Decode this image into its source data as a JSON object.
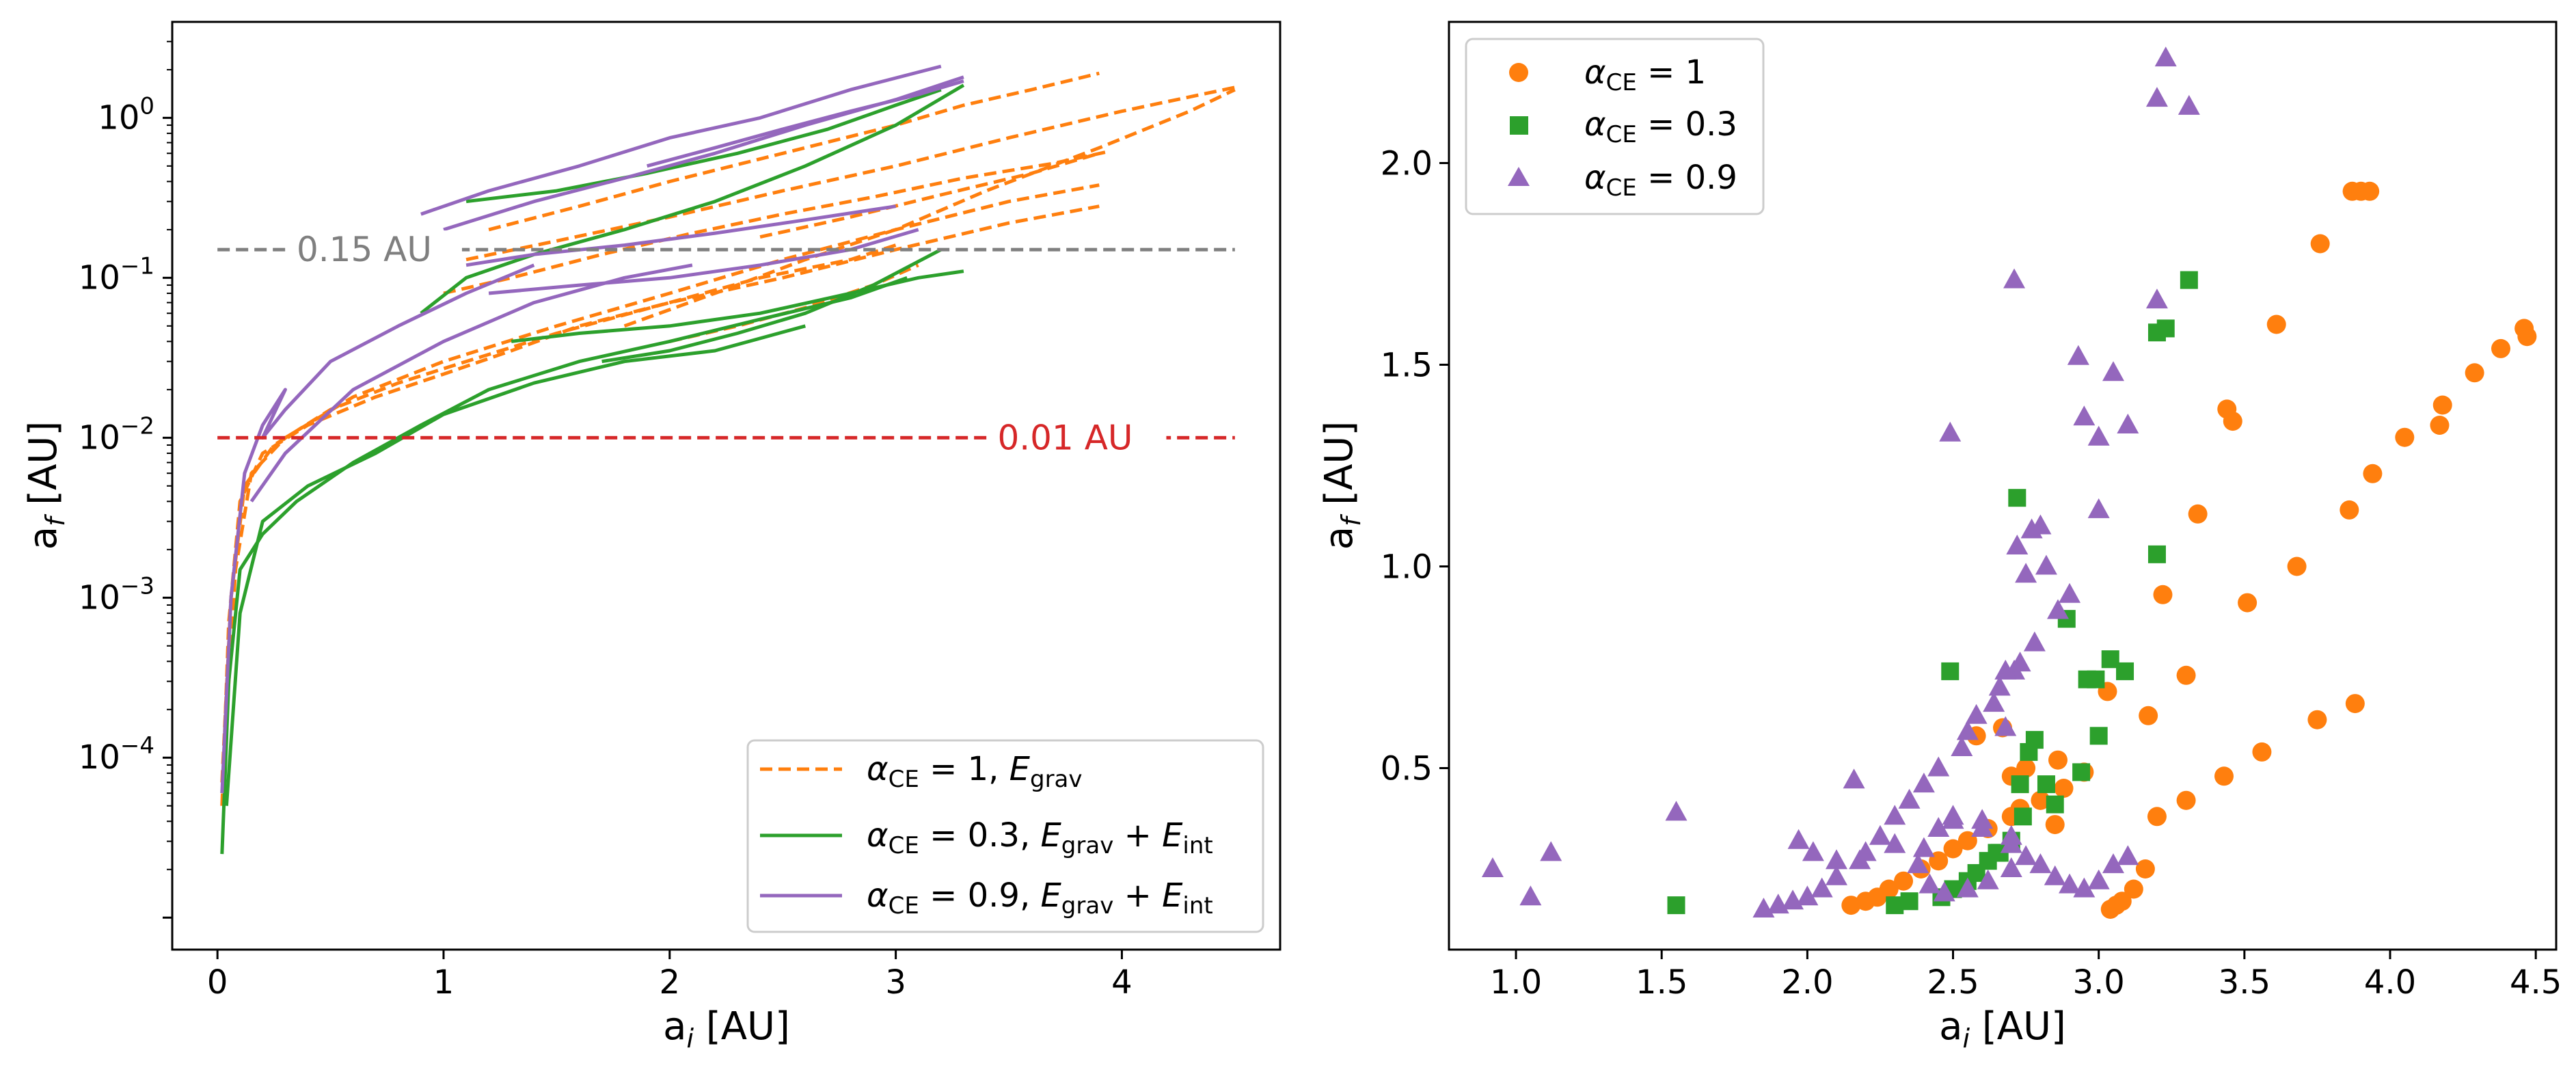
{
  "chart_data": [
    {
      "type": "line",
      "panel": "left",
      "xlabel_main": "a",
      "xlabel_sub": "i",
      "xlabel_unit": " [AU]",
      "ylabel_main": "a",
      "ylabel_sub": "f",
      "ylabel_unit": " [AU]",
      "xlim": [
        -0.2,
        4.7
      ],
      "ylim_log10": [
        -5.2,
        0.6
      ],
      "yscale": "log",
      "xticks": [
        0,
        1,
        2,
        3,
        4
      ],
      "yticks_log10": [
        -4,
        -3,
        -2,
        -1,
        0
      ],
      "ytick_labels": [
        {
          "base": "10",
          "exp": "−4"
        },
        {
          "base": "10",
          "exp": "−3"
        },
        {
          "base": "10",
          "exp": "−2"
        },
        {
          "base": "10",
          "exp": "−1"
        },
        {
          "base": "10",
          "exp": "0"
        }
      ],
      "reference_lines": [
        {
          "value": 0.15,
          "label": "0.15 AU",
          "color": "#7f7f7f"
        },
        {
          "value": 0.01,
          "label": "0.01 AU",
          "color": "#d62728"
        }
      ],
      "legend": [
        {
          "alpha": "1",
          "energy_main": "E",
          "energy_sub": "grav",
          "extra_main": "",
          "extra_sub": "",
          "color": "#ff7f0e",
          "style": "dashed"
        },
        {
          "alpha": "0.3",
          "energy_main": "E",
          "energy_sub": "grav",
          "extra_main": "E",
          "extra_sub": "int",
          "color": "#2ca02c",
          "style": "solid"
        },
        {
          "alpha": "0.9",
          "energy_main": "E",
          "energy_sub": "grav",
          "extra_main": "E",
          "extra_sub": "int",
          "color": "#9467bd",
          "style": "solid"
        }
      ],
      "legend_alpha_symbol": "α",
      "legend_alpha_sub": "CE",
      "legend_placement": "bottom-right",
      "series": [
        {
          "name": "α_CE = 1, E_grav",
          "color": "#ff7f0e",
          "style": "dashed",
          "tracks": [
            {
              "x": [
                0.02,
                0.05,
                0.1,
                0.2,
                0.4,
                0.7,
                1.0,
                1.3,
                1.6,
                2.0,
                2.4,
                2.8,
                3.0
              ],
              "y": [
                5e-05,
                0.0007,
                0.004,
                0.008,
                0.012,
                0.018,
                0.025,
                0.035,
                0.05,
                0.07,
                0.1,
                0.13,
                0.16
              ]
            },
            {
              "x": [
                0.02,
                0.06,
                0.12,
                0.25,
                0.5,
                0.8,
                1.1,
                1.5,
                2.0,
                2.5,
                3.0,
                3.5,
                3.9
              ],
              "y": [
                7e-05,
                0.001,
                0.005,
                0.009,
                0.015,
                0.022,
                0.03,
                0.045,
                0.07,
                0.1,
                0.15,
                0.22,
                0.28
              ]
            },
            {
              "x": [
                0.03,
                0.08,
                0.15,
                0.3,
                0.6,
                1.0,
                1.5,
                2.0,
                2.5,
                3.0,
                3.5,
                3.9
              ],
              "y": [
                0.0001,
                0.0015,
                0.006,
                0.01,
                0.018,
                0.03,
                0.05,
                0.08,
                0.13,
                0.2,
                0.3,
                0.38
              ]
            },
            {
              "x": [
                1.0,
                1.3,
                1.7,
                2.1,
                2.5,
                2.9,
                3.3,
                3.7,
                3.95
              ],
              "y": [
                0.08,
                0.1,
                0.14,
                0.19,
                0.25,
                0.32,
                0.42,
                0.52,
                0.62
              ]
            },
            {
              "x": [
                1.1,
                1.5,
                2.0,
                2.5,
                3.0,
                3.5,
                4.0,
                4.5
              ],
              "y": [
                0.13,
                0.17,
                0.24,
                0.35,
                0.5,
                0.75,
                1.1,
                1.55
              ]
            },
            {
              "x": [
                1.2,
                1.6,
                2.0,
                2.5,
                3.0,
                3.3,
                3.6,
                3.9
              ],
              "y": [
                0.2,
                0.28,
                0.4,
                0.6,
                0.9,
                1.2,
                1.5,
                1.9
              ]
            },
            {
              "x": [
                1.8,
                2.2,
                2.6,
                3.0,
                3.4,
                3.9,
                4.3,
                4.5
              ],
              "y": [
                0.05,
                0.08,
                0.13,
                0.2,
                0.35,
                0.65,
                1.1,
                1.5
              ]
            },
            {
              "x": [
                2.0,
                2.3,
                2.6,
                2.9,
                3.1
              ],
              "y": [
                0.04,
                0.05,
                0.065,
                0.09,
                0.12
              ]
            },
            {
              "x": [
                2.4,
                2.8,
                3.2,
                3.6,
                3.9
              ],
              "y": [
                0.18,
                0.24,
                0.33,
                0.45,
                0.6
              ]
            }
          ]
        },
        {
          "name": "α_CE = 0.3, E_grav + E_int",
          "color": "#2ca02c",
          "style": "solid",
          "tracks": [
            {
              "x": [
                0.02,
                0.05,
                0.1,
                0.2,
                0.35,
                0.6,
                0.9,
                1.2,
                1.6,
                2.0,
                2.4,
                2.8,
                3.05
              ],
              "y": [
                2.5e-05,
                0.0003,
                0.0015,
                0.0025,
                0.004,
                0.007,
                0.012,
                0.02,
                0.03,
                0.04,
                0.055,
                0.075,
                0.1
              ]
            },
            {
              "x": [
                0.9,
                1.1,
                1.4,
                1.8,
                2.2,
                2.6,
                3.0,
                3.3
              ],
              "y": [
                0.06,
                0.1,
                0.14,
                0.2,
                0.3,
                0.5,
                0.9,
                1.6
              ]
            },
            {
              "x": [
                1.3,
                1.6,
                2.0,
                2.4,
                2.8,
                3.1,
                3.3
              ],
              "y": [
                0.04,
                0.045,
                0.05,
                0.06,
                0.08,
                0.1,
                0.11
              ]
            },
            {
              "x": [
                1.1,
                1.5,
                1.9,
                2.3,
                2.7,
                3.0,
                3.2
              ],
              "y": [
                0.3,
                0.35,
                0.45,
                0.6,
                0.85,
                1.2,
                1.5
              ]
            },
            {
              "x": [
                1.7,
                2.0,
                2.3,
                2.6,
                2.9,
                3.2
              ],
              "y": [
                0.03,
                0.035,
                0.045,
                0.06,
                0.09,
                0.15
              ]
            },
            {
              "x": [
                0.04,
                0.1,
                0.2,
                0.4,
                0.7,
                1.0,
                1.4,
                1.8,
                2.2,
                2.6
              ],
              "y": [
                5e-05,
                0.0008,
                0.003,
                0.005,
                0.008,
                0.014,
                0.022,
                0.03,
                0.035,
                0.05
              ]
            }
          ]
        },
        {
          "name": "α_CE = 0.9, E_grav + E_int",
          "color": "#9467bd",
          "style": "solid",
          "tracks": [
            {
              "x": [
                0.02,
                0.06,
                0.12,
                0.2,
                0.3,
                0.2,
                0.3,
                0.5,
                0.8,
                1.1,
                1.4
              ],
              "y": [
                6e-05,
                0.001,
                0.006,
                0.012,
                0.02,
                0.01,
                0.015,
                0.03,
                0.05,
                0.08,
                0.12
              ]
            },
            {
              "x": [
                0.9,
                1.2,
                1.6,
                2.0,
                2.4,
                2.8,
                3.2
              ],
              "y": [
                0.25,
                0.35,
                0.5,
                0.75,
                1.0,
                1.5,
                2.1
              ]
            },
            {
              "x": [
                1.0,
                1.4,
                1.8,
                2.2,
                2.6,
                3.0,
                3.3
              ],
              "y": [
                0.2,
                0.3,
                0.42,
                0.6,
                0.9,
                1.3,
                1.8
              ]
            },
            {
              "x": [
                1.1,
                1.4,
                1.8,
                2.2,
                2.6,
                3.0
              ],
              "y": [
                0.12,
                0.14,
                0.16,
                0.19,
                0.23,
                0.28
              ]
            },
            {
              "x": [
                1.2,
                1.6,
                2.0,
                2.4,
                2.8,
                3.1
              ],
              "y": [
                0.08,
                0.09,
                0.1,
                0.12,
                0.15,
                0.2
              ]
            },
            {
              "x": [
                0.15,
                0.3,
                0.6,
                1.0,
                1.4,
                1.8,
                2.1
              ],
              "y": [
                0.004,
                0.008,
                0.02,
                0.04,
                0.07,
                0.1,
                0.12
              ]
            },
            {
              "x": [
                1.9,
                2.2,
                2.5,
                2.8,
                3.1,
                3.3
              ],
              "y": [
                0.5,
                0.65,
                0.85,
                1.1,
                1.4,
                1.7
              ]
            }
          ]
        }
      ]
    },
    {
      "type": "scatter",
      "panel": "right",
      "xlabel_main": "a",
      "xlabel_sub": "i",
      "xlabel_unit": " [AU]",
      "ylabel_main": "a",
      "ylabel_sub": "f",
      "ylabel_unit": " [AU]",
      "xlim": [
        0.77,
        4.57
      ],
      "ylim": [
        0.05,
        2.35
      ],
      "xticks": [
        1.0,
        1.5,
        2.0,
        2.5,
        3.0,
        3.5,
        4.0,
        4.5
      ],
      "xtick_labels": [
        "1.0",
        "1.5",
        "2.0",
        "2.5",
        "3.0",
        "3.5",
        "4.0",
        "4.5"
      ],
      "yticks": [
        0.5,
        1.0,
        1.5,
        2.0
      ],
      "ytick_labels": [
        "0.5",
        "1.0",
        "1.5",
        "2.0"
      ],
      "legend": [
        {
          "alpha": "1",
          "marker": "circle",
          "color": "#ff7f0e"
        },
        {
          "alpha": "0.3",
          "marker": "square",
          "color": "#2ca02c"
        },
        {
          "alpha": "0.9",
          "marker": "triangle",
          "color": "#9467bd"
        }
      ],
      "legend_alpha_symbol": "α",
      "legend_alpha_sub": "CE",
      "legend_placement": "top-left",
      "series": [
        {
          "name": "α_CE = 1",
          "marker": "circle",
          "color": "#ff7f0e",
          "x": [
            3.87,
            3.9,
            3.93,
            3.76,
            3.61,
            3.44,
            3.46,
            3.34,
            3.22,
            3.3,
            3.17,
            3.03,
            2.95,
            2.88,
            2.8,
            2.73,
            2.7,
            2.62,
            2.55,
            2.5,
            2.45,
            2.39,
            2.33,
            2.28,
            2.24,
            2.2,
            2.15,
            3.04,
            3.06,
            3.08,
            3.12,
            3.16,
            3.2,
            3.3,
            3.43,
            3.56,
            3.75,
            3.88,
            3.51,
            3.68,
            3.86,
            3.94,
            4.05,
            4.17,
            4.18,
            4.29,
            4.38,
            4.47,
            4.46,
            2.75,
            2.86,
            2.7,
            2.58,
            2.67,
            2.85
          ],
          "y": [
            1.93,
            1.93,
            1.93,
            1.8,
            1.6,
            1.39,
            1.36,
            1.13,
            0.93,
            0.73,
            0.63,
            0.69,
            0.49,
            0.45,
            0.42,
            0.4,
            0.38,
            0.35,
            0.32,
            0.3,
            0.27,
            0.25,
            0.22,
            0.2,
            0.18,
            0.17,
            0.16,
            0.15,
            0.16,
            0.17,
            0.2,
            0.25,
            0.38,
            0.42,
            0.48,
            0.54,
            0.62,
            0.66,
            0.91,
            1.0,
            1.14,
            1.23,
            1.32,
            1.35,
            1.4,
            1.48,
            1.54,
            1.57,
            1.59,
            0.5,
            0.52,
            0.48,
            0.58,
            0.6,
            0.36
          ]
        },
        {
          "name": "α_CE = 0.3",
          "marker": "square",
          "color": "#2ca02c",
          "x": [
            3.31,
            3.23,
            3.2,
            3.2,
            2.72,
            2.49,
            2.89,
            2.96,
            2.99,
            3.04,
            3.09,
            3.0,
            2.94,
            2.85,
            2.82,
            2.78,
            2.76,
            2.73,
            2.74,
            2.7,
            2.66,
            2.62,
            2.58,
            2.55,
            2.5,
            2.46,
            2.35,
            2.3,
            1.55,
            2.65
          ],
          "y": [
            1.71,
            1.59,
            1.58,
            1.03,
            1.17,
            0.74,
            0.87,
            0.72,
            0.72,
            0.77,
            0.74,
            0.58,
            0.49,
            0.41,
            0.46,
            0.57,
            0.54,
            0.46,
            0.38,
            0.32,
            0.29,
            0.27,
            0.24,
            0.22,
            0.2,
            0.18,
            0.17,
            0.16,
            0.16,
            0.29
          ]
        },
        {
          "name": "α_CE = 0.9",
          "marker": "triangle",
          "color": "#9467bd",
          "x": [
            3.23,
            3.2,
            3.31,
            2.71,
            3.2,
            2.93,
            3.05,
            2.95,
            3.0,
            3.1,
            2.49,
            3.0,
            2.77,
            2.8,
            2.72,
            2.82,
            2.75,
            2.86,
            2.9,
            2.71,
            2.68,
            2.73,
            2.66,
            2.64,
            2.58,
            2.55,
            2.53,
            2.45,
            2.4,
            2.35,
            2.3,
            2.25,
            2.2,
            2.18,
            2.1,
            2.05,
            2.0,
            1.95,
            1.9,
            1.85,
            1.55,
            0.92,
            1.05,
            1.12,
            1.97,
            2.02,
            2.1,
            2.16,
            2.3,
            2.5,
            2.6,
            2.7,
            2.75,
            2.7,
            2.62,
            2.55,
            2.47,
            2.42,
            2.38,
            2.4,
            2.45,
            2.5,
            2.6,
            2.7,
            2.8,
            2.85,
            2.9,
            2.95,
            3.0,
            3.05,
            3.1,
            2.78,
            2.68
          ],
          "y": [
            2.26,
            2.16,
            2.14,
            1.71,
            1.66,
            1.52,
            1.48,
            1.37,
            1.32,
            1.35,
            1.33,
            1.14,
            1.09,
            1.1,
            1.05,
            1.0,
            0.98,
            0.89,
            0.93,
            0.74,
            0.74,
            0.76,
            0.7,
            0.66,
            0.63,
            0.59,
            0.55,
            0.5,
            0.46,
            0.42,
            0.38,
            0.33,
            0.29,
            0.27,
            0.23,
            0.2,
            0.18,
            0.17,
            0.16,
            0.15,
            0.39,
            0.25,
            0.18,
            0.29,
            0.32,
            0.29,
            0.27,
            0.47,
            0.31,
            0.38,
            0.37,
            0.33,
            0.28,
            0.25,
            0.22,
            0.2,
            0.19,
            0.21,
            0.26,
            0.3,
            0.35,
            0.37,
            0.35,
            0.31,
            0.26,
            0.23,
            0.21,
            0.2,
            0.22,
            0.26,
            0.28,
            0.81,
            0.6
          ]
        }
      ]
    }
  ]
}
